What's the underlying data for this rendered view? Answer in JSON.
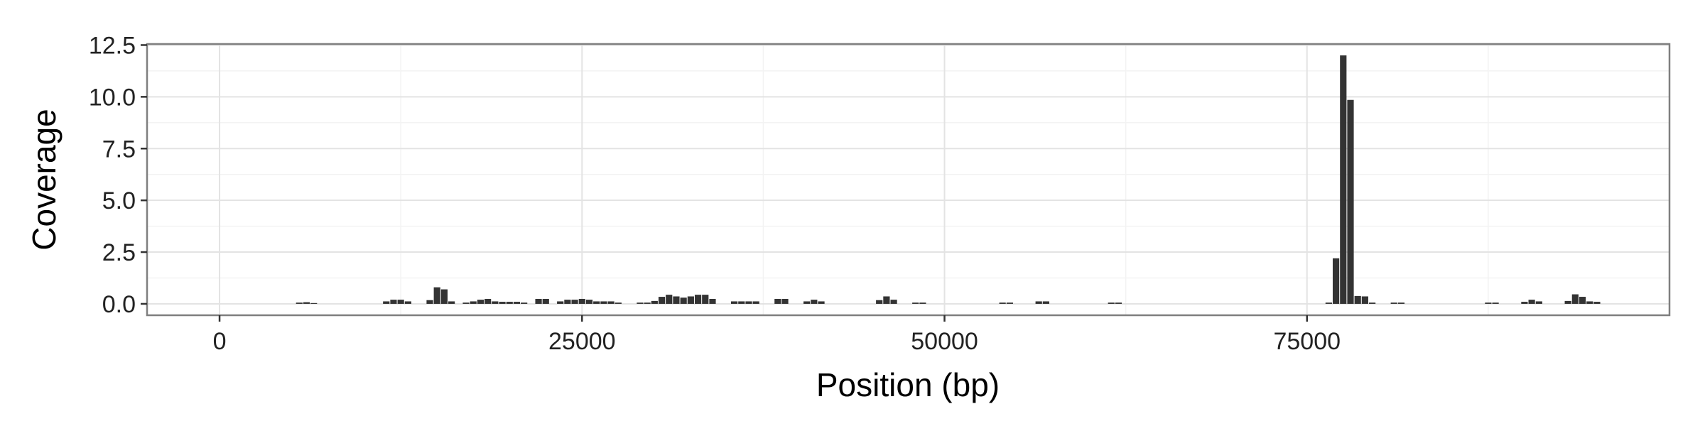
{
  "chart_data": {
    "type": "bar",
    "title": "",
    "xlabel": "Position (bp)",
    "ylabel": "Coverage",
    "xlim": [
      -5000,
      100000
    ],
    "ylim": [
      -0.55,
      12.55
    ],
    "bin_width": 500,
    "x_ticks": [
      0,
      25000,
      50000,
      75000
    ],
    "x_tick_labels": [
      "0",
      "25000",
      "50000",
      "75000"
    ],
    "y_ticks": [
      0,
      2.5,
      5,
      7.5,
      10,
      12.5
    ],
    "y_tick_labels": [
      "0.0",
      "2.5",
      "5.0",
      "7.5",
      "10.0",
      "12.5"
    ],
    "grid": true,
    "legend": "none",
    "bar_color": "#333333",
    "x": [
      5500,
      6000,
      6500,
      11500,
      12000,
      12500,
      13000,
      14500,
      15000,
      15500,
      16000,
      17000,
      17500,
      18000,
      18500,
      19000,
      19500,
      20000,
      20500,
      21000,
      22000,
      22500,
      23500,
      24000,
      24500,
      25000,
      25500,
      26000,
      26500,
      27000,
      27500,
      29000,
      29500,
      30000,
      30500,
      31000,
      31500,
      32000,
      32500,
      33000,
      33500,
      34000,
      35500,
      36000,
      36500,
      37000,
      38500,
      39000,
      40500,
      41000,
      41500,
      45500,
      46000,
      46500,
      48000,
      48500,
      54000,
      54500,
      56500,
      57000,
      61500,
      62000,
      76500,
      77000,
      77500,
      78000,
      78500,
      79000,
      79500,
      81000,
      81500,
      87500,
      88000,
      90000,
      90500,
      91000,
      93000,
      93500,
      94000,
      94500,
      95000
    ],
    "values": [
      0.06,
      0.08,
      0.04,
      0.12,
      0.2,
      0.2,
      0.12,
      0.18,
      0.8,
      0.7,
      0.12,
      0.06,
      0.12,
      0.2,
      0.24,
      0.12,
      0.1,
      0.1,
      0.1,
      0.06,
      0.24,
      0.24,
      0.12,
      0.2,
      0.2,
      0.24,
      0.2,
      0.12,
      0.12,
      0.12,
      0.06,
      0.06,
      0.06,
      0.14,
      0.34,
      0.44,
      0.36,
      0.3,
      0.36,
      0.44,
      0.44,
      0.24,
      0.12,
      0.12,
      0.12,
      0.12,
      0.24,
      0.24,
      0.12,
      0.2,
      0.12,
      0.18,
      0.36,
      0.2,
      0.06,
      0.06,
      0.06,
      0.06,
      0.12,
      0.12,
      0.06,
      0.06,
      0.06,
      2.2,
      12.0,
      9.85,
      0.38,
      0.36,
      0.06,
      0.06,
      0.06,
      0.06,
      0.06,
      0.1,
      0.2,
      0.12,
      0.14,
      0.46,
      0.34,
      0.12,
      0.1
    ]
  }
}
